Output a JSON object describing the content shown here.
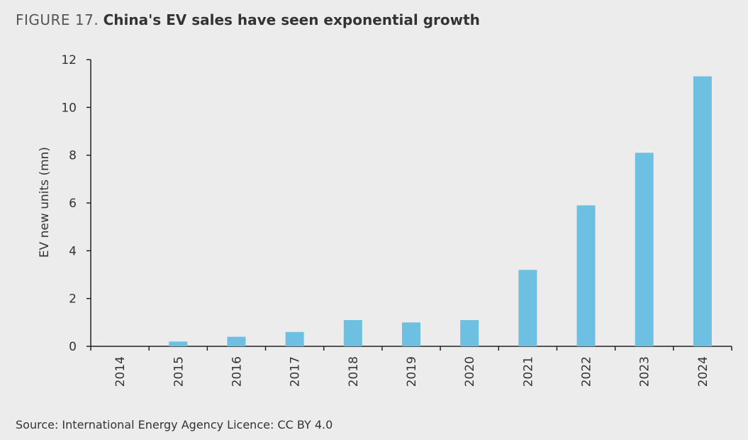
{
  "header": {
    "figure_label": "FIGURE 17.",
    "title": "China's EV sales have seen exponential growth"
  },
  "chart_data": {
    "type": "bar",
    "title": "China's EV sales have seen exponential growth",
    "xlabel": "",
    "ylabel": "EV new units (mn)",
    "categories": [
      "2014",
      "2015",
      "2016",
      "2017",
      "2018",
      "2019",
      "2020",
      "2021",
      "2022",
      "2023",
      "2024"
    ],
    "values": [
      0,
      0.2,
      0.4,
      0.6,
      1.1,
      1.0,
      1.1,
      3.2,
      5.9,
      8.1,
      11.3
    ],
    "ylim": [
      0,
      12
    ],
    "yticks": [
      0,
      2,
      4,
      6,
      8,
      10,
      12
    ],
    "grid": false,
    "legend": "none",
    "bar_color": "#6ec0e2"
  },
  "footer": {
    "source": "Source: International Energy Agency Licence: CC BY 4.0"
  }
}
